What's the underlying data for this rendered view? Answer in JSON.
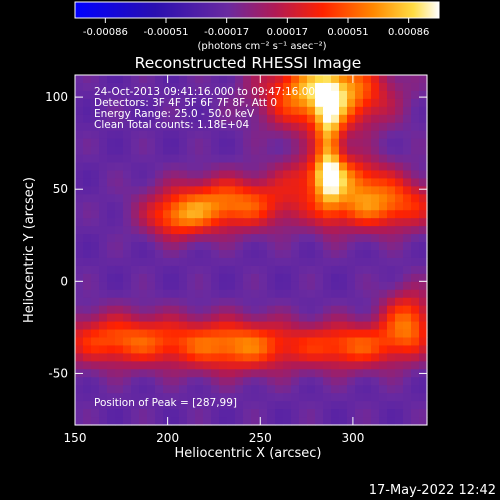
{
  "chart_data": {
    "type": "heatmap",
    "title": "Reconstructed RHESSI Image",
    "xlabel": "Heliocentric X (arcsec)",
    "ylabel": "Heliocentric Y (arcsec)",
    "xlim": [
      150,
      340
    ],
    "ylim": [
      -78,
      112
    ],
    "x_ticks": [
      150,
      200,
      250,
      300
    ],
    "y_ticks": [
      -50,
      0,
      50,
      100
    ],
    "colorbar": {
      "ticks": [
        "-0.00086",
        "-0.00051",
        "-0.00017",
        "0.00017",
        "0.00051",
        "0.00086"
      ],
      "min": -0.00086,
      "max": 0.00086,
      "units": "(photons cm⁻² s⁻¹ asec⁻²)"
    },
    "annotations": [
      "24-Oct-2013 09:41:16.000 to 09:47:16.000",
      "Detectors: 3F 4F 5F 6F 7F 8F, Att 0",
      "Energy Range: 25.0 - 50.0 keV",
      "Clean     Total counts: 1.18E+04"
    ],
    "peak_label": "Position of Peak = [287,99]",
    "grid": false,
    "sources": [
      {
        "x": 285,
        "y": 102,
        "rx": 22,
        "ry": 14,
        "amp": 0.00095
      },
      {
        "x": 287,
        "y": 72,
        "rx": 5,
        "ry": 22,
        "amp": 0.0006
      },
      {
        "x": 232,
        "y": 42,
        "rx": 24,
        "ry": 10,
        "amp": 0.00068
      },
      {
        "x": 312,
        "y": 42,
        "rx": 24,
        "ry": 10,
        "amp": 0.0007
      },
      {
        "x": 290,
        "y": 58,
        "rx": 18,
        "ry": 8,
        "amp": 0.00055
      },
      {
        "x": 205,
        "y": 34,
        "rx": 12,
        "ry": 8,
        "amp": 0.00045
      },
      {
        "x": 175,
        "y": -32,
        "rx": 26,
        "ry": 10,
        "amp": 0.0006
      },
      {
        "x": 238,
        "y": -35,
        "rx": 24,
        "ry": 10,
        "amp": 0.00068
      },
      {
        "x": 300,
        "y": -35,
        "rx": 20,
        "ry": 9,
        "amp": 0.00058
      },
      {
        "x": 330,
        "y": -22,
        "rx": 10,
        "ry": 12,
        "amp": 0.0006
      }
    ],
    "background": -0.00017
  },
  "footer": {
    "date_stamp": "17-May-2022 12:42"
  }
}
